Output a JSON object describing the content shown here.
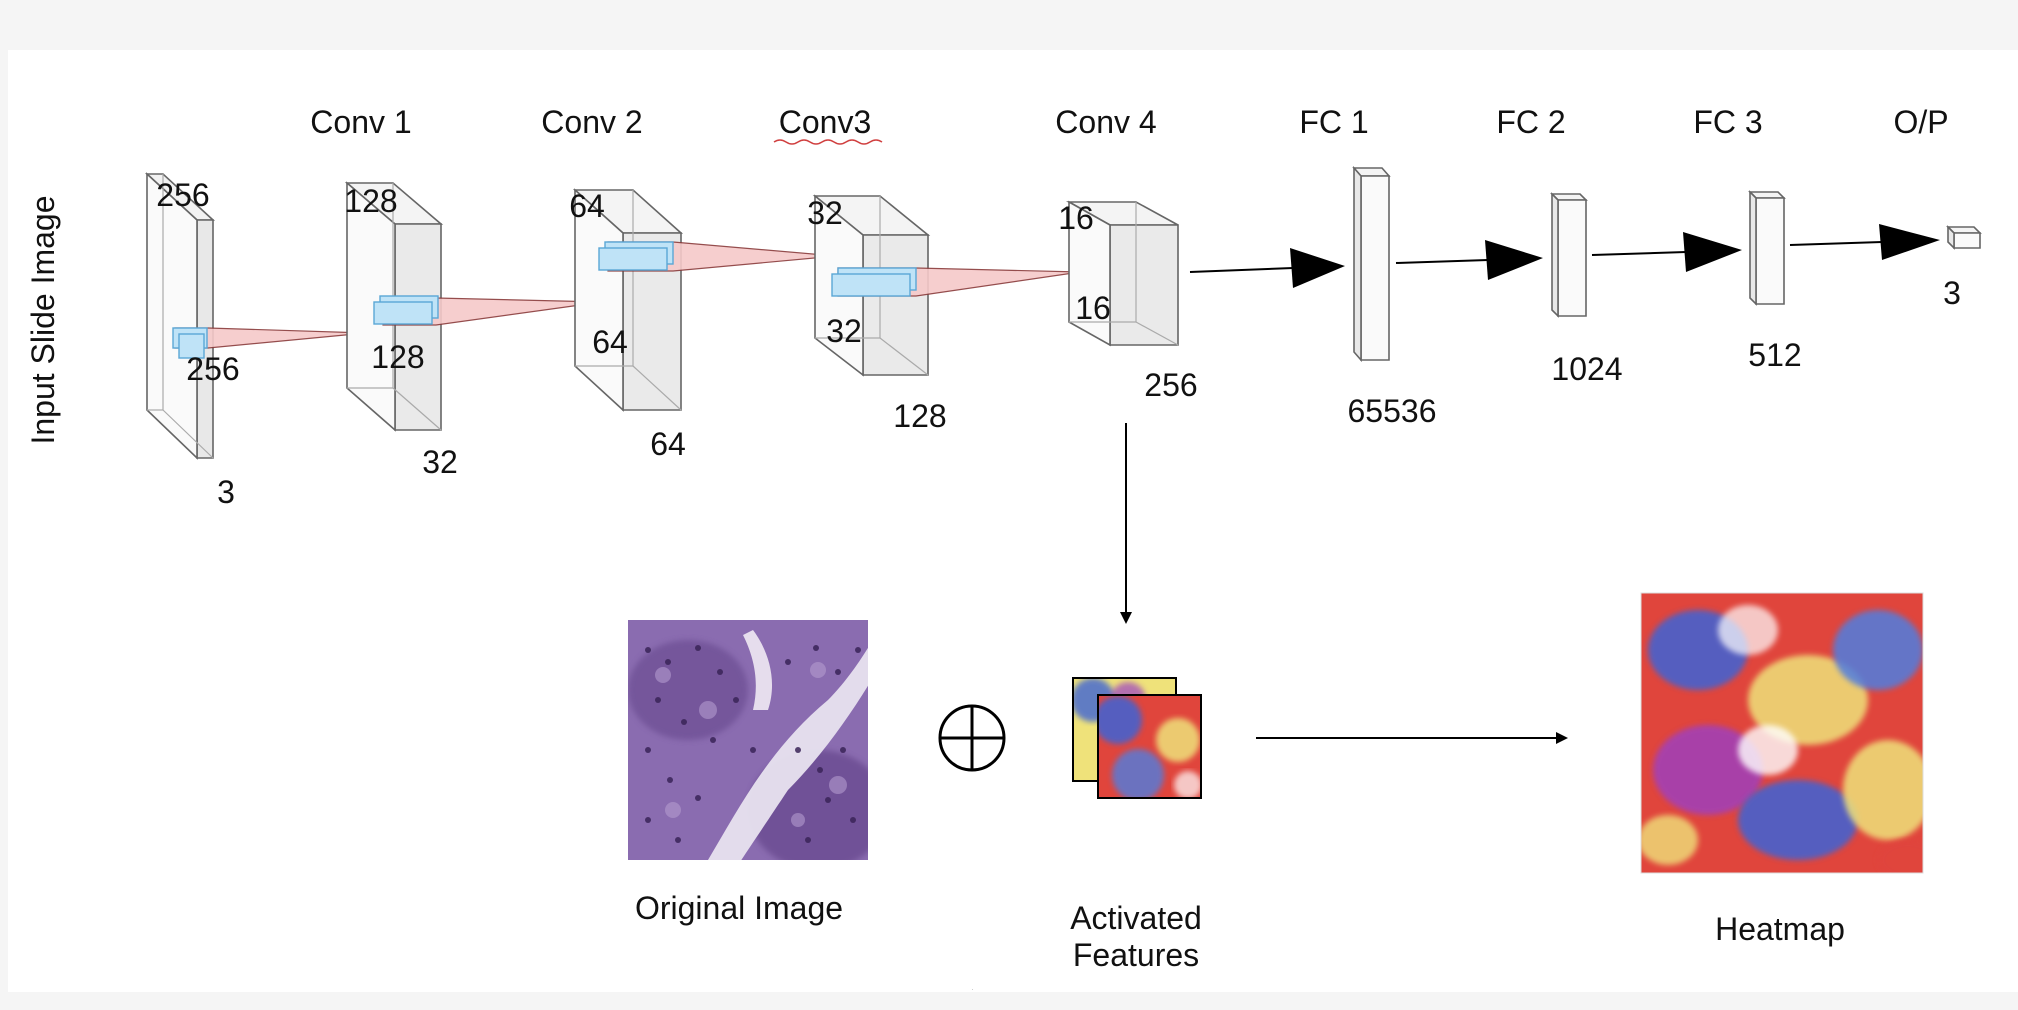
{
  "side_label": "Input Slide Image",
  "layers": {
    "input": {
      "top": "256",
      "mid": "256",
      "bottom": "3"
    },
    "conv1": {
      "name": "Conv 1",
      "top": "128",
      "mid": "128",
      "bottom": "32"
    },
    "conv2": {
      "name": "Conv 2",
      "top": "64",
      "mid": "64",
      "bottom": "64"
    },
    "conv3": {
      "name": "Conv3",
      "top": "32",
      "mid": "32",
      "bottom": "128"
    },
    "conv4": {
      "name": "Conv 4",
      "top": "16",
      "mid": "16",
      "bottom": "256"
    },
    "fc1": {
      "name": "FC 1",
      "size": "65536"
    },
    "fc2": {
      "name": "FC 2",
      "size": "1024"
    },
    "fc3": {
      "name": "FC 3",
      "size": "512"
    },
    "output": {
      "name": "O/P",
      "size": "3"
    }
  },
  "bottom": {
    "original_caption": "Original Image",
    "plus_symbol": "⊕",
    "activated_caption_line1": "Activated",
    "activated_caption_line2": "Features",
    "heatmap_caption": "Heatmap"
  },
  "colors": {
    "block_stroke": "#555555",
    "block_fill": "#f0f0f0",
    "kernel_fill": "#bfe3f7",
    "kernel_stroke": "#5aa7d6",
    "cone_fill": "#f6c9c9",
    "cone_stroke": "#8a3a3a",
    "arrow": "#000000",
    "tissue_purple": "#7d5ea3",
    "heat_red": "#e0453c",
    "heat_blue": "#3d63d6",
    "heat_yellow": "#efe27a"
  }
}
